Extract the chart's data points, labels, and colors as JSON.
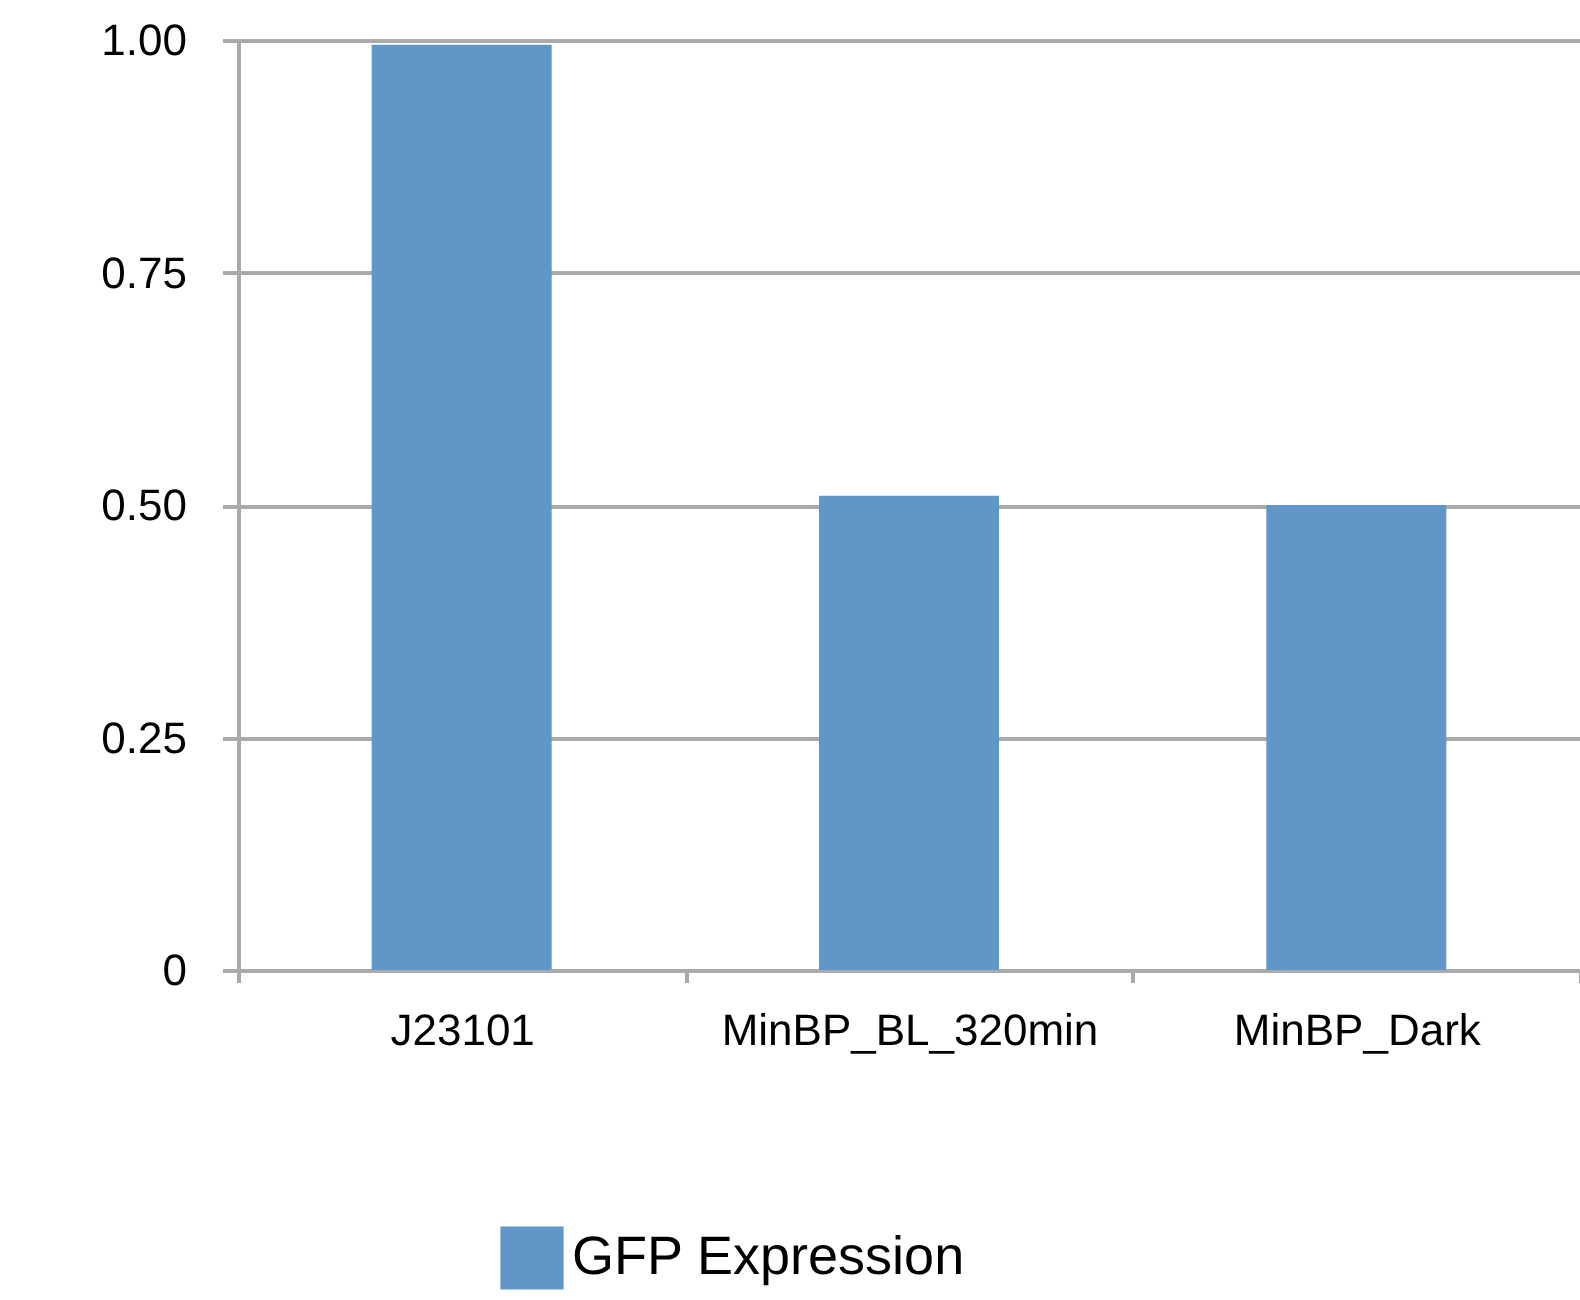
{
  "chart_data": {
    "type": "bar",
    "categories": [
      "J23101",
      "MinBP_BL_320min",
      "MinBP_Dark"
    ],
    "series": [
      {
        "name": "GFP Expression",
        "color": "#6096c8",
        "values": [
          0.995,
          0.51,
          0.5
        ]
      }
    ],
    "ylim": [
      0,
      1
    ],
    "yticks": [
      {
        "value": 0,
        "label": "0"
      },
      {
        "value": 0.25,
        "label": "0.25"
      },
      {
        "value": 0.5,
        "label": "0.50"
      },
      {
        "value": 0.75,
        "label": "0.75"
      },
      {
        "value": 1,
        "label": "1.00"
      }
    ],
    "grid": "y",
    "legend": "bottom"
  }
}
